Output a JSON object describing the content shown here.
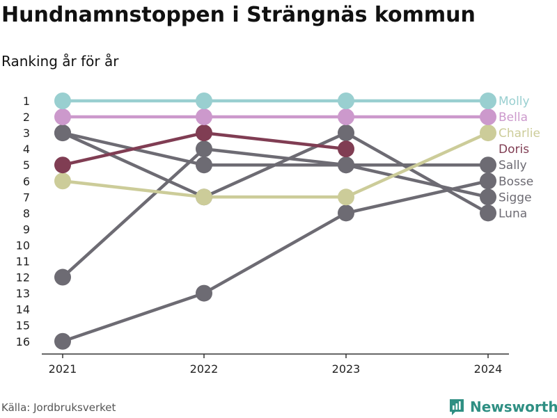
{
  "title": "Hundnamnstoppen i Strängnäs kommun",
  "subtitle": "Ranking år för år",
  "source": "Källa: Jordbruksverket",
  "brand": "Newsworthy",
  "chart_data": {
    "type": "line",
    "x": [
      "2021",
      "2022",
      "2023",
      "2024"
    ],
    "y_ticks": [
      "1",
      "2",
      "3",
      "4",
      "5",
      "6",
      "7",
      "8",
      "9",
      "10",
      "11",
      "12",
      "13",
      "14",
      "15",
      "16"
    ],
    "y_scale": "rank",
    "ylim": [
      1,
      16
    ],
    "y_reversed": true,
    "grid": false,
    "legend": "direct labels at line ends",
    "series": [
      {
        "name": "Molly",
        "values": [
          1,
          1,
          1,
          1
        ],
        "color": "#99cfd0"
      },
      {
        "name": "Bella",
        "values": [
          2,
          2,
          2,
          2
        ],
        "color": "#cc99cc"
      },
      {
        "name": "Charlie",
        "values": [
          6,
          7,
          7,
          3
        ],
        "color": "#cccc99"
      },
      {
        "name": "Doris",
        "values": [
          5,
          3,
          4,
          null
        ],
        "color": "#803d53"
      },
      {
        "name": "Sally",
        "values": [
          3,
          5,
          5,
          5
        ],
        "color": "#6d6b73"
      },
      {
        "name": "Bosse",
        "values": [
          16,
          13,
          8,
          6
        ],
        "color": "#6d6b73"
      },
      {
        "name": "Sigge",
        "values": [
          12,
          4,
          5,
          7
        ],
        "color": "#6d6b73"
      },
      {
        "name": "Luna",
        "values": [
          3,
          7,
          3,
          8
        ],
        "color": "#6d6b73"
      }
    ]
  }
}
